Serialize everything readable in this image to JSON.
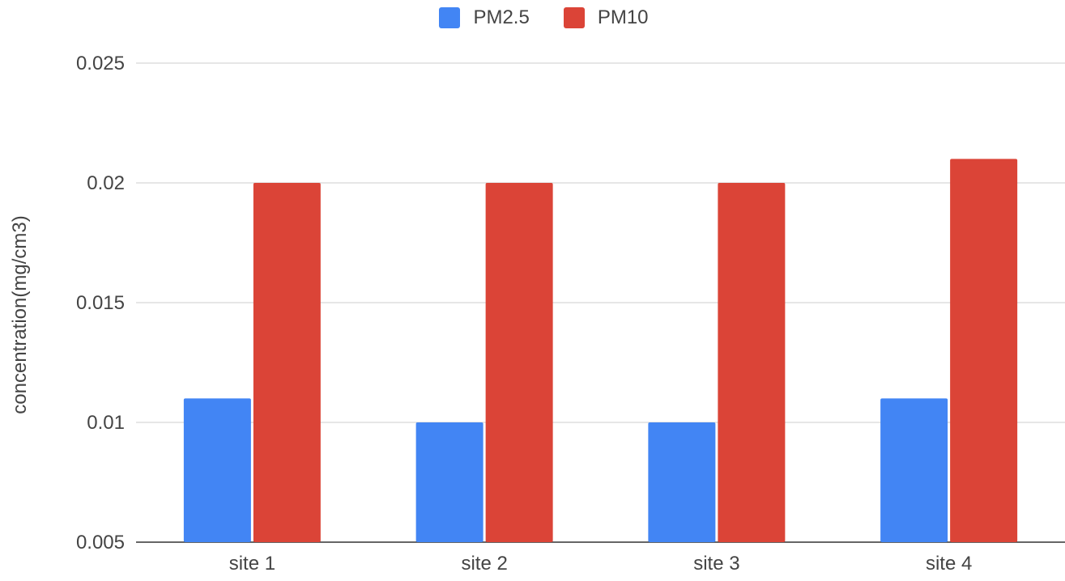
{
  "chart_data": {
    "type": "bar",
    "categories": [
      "site 1",
      "site 2",
      "site 3",
      "site 4"
    ],
    "series": [
      {
        "name": "PM2.5",
        "color": "#4285f4",
        "values": [
          0.011,
          0.01,
          0.01,
          0.011
        ]
      },
      {
        "name": "PM10",
        "color": "#db4437",
        "values": [
          0.02,
          0.02,
          0.02,
          0.021
        ]
      }
    ],
    "title": "",
    "xlabel": "",
    "ylabel": "concentration(mg/cm3)",
    "ylim": [
      0.005,
      0.025
    ],
    "yticks": [
      {
        "value": 0.005,
        "label": "0.005"
      },
      {
        "value": 0.01,
        "label": "0.01"
      },
      {
        "value": 0.015,
        "label": "0.015"
      },
      {
        "value": 0.02,
        "label": "0.02"
      },
      {
        "value": 0.025,
        "label": "0.025"
      }
    ],
    "grid": true,
    "legend_position": "top"
  }
}
